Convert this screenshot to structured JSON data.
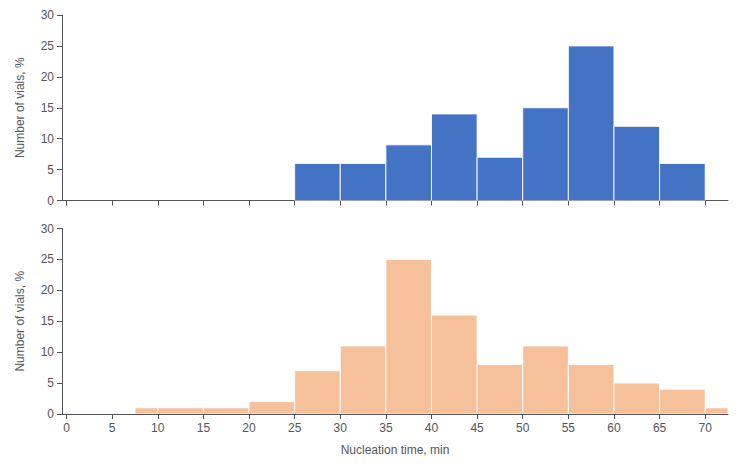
{
  "chart_data": [
    {
      "type": "histogram",
      "x": [
        25,
        30,
        35,
        40,
        45,
        50,
        55,
        60,
        65
      ],
      "bin_width": 5,
      "values": [
        6,
        6,
        9,
        14,
        7,
        15,
        25,
        12,
        6
      ],
      "color": "#4472C4",
      "ylabel": "Number of vials, %",
      "xlim": [
        -0.5,
        72.5
      ],
      "xticks": [
        0,
        5,
        10,
        15,
        20,
        25,
        30,
        35,
        40,
        45,
        50,
        55,
        60,
        65,
        70
      ],
      "ylim": [
        0,
        30
      ],
      "yticks": [
        0,
        5,
        10,
        15,
        20,
        25,
        30
      ],
      "tick_labels": "y",
      "grid": false
    },
    {
      "type": "histogram",
      "x": [
        7.5,
        10,
        15,
        20,
        25,
        30,
        35,
        40,
        45,
        50,
        55,
        60,
        65,
        70
      ],
      "bin_width": 5,
      "values": [
        1,
        1,
        1,
        2,
        7,
        11,
        25,
        16,
        8,
        11,
        8,
        5,
        4,
        1
      ],
      "color": "#F5C09A",
      "ylabel": "Number of vials, %",
      "xlabel": "Nucleation time, min",
      "xlim": [
        -0.5,
        72.5
      ],
      "xticks": [
        0,
        5,
        10,
        15,
        20,
        25,
        30,
        35,
        40,
        45,
        50,
        55,
        60,
        65,
        70
      ],
      "ylim": [
        0,
        30
      ],
      "yticks": [
        0,
        5,
        10,
        15,
        20,
        25,
        30
      ],
      "grid": false
    }
  ]
}
